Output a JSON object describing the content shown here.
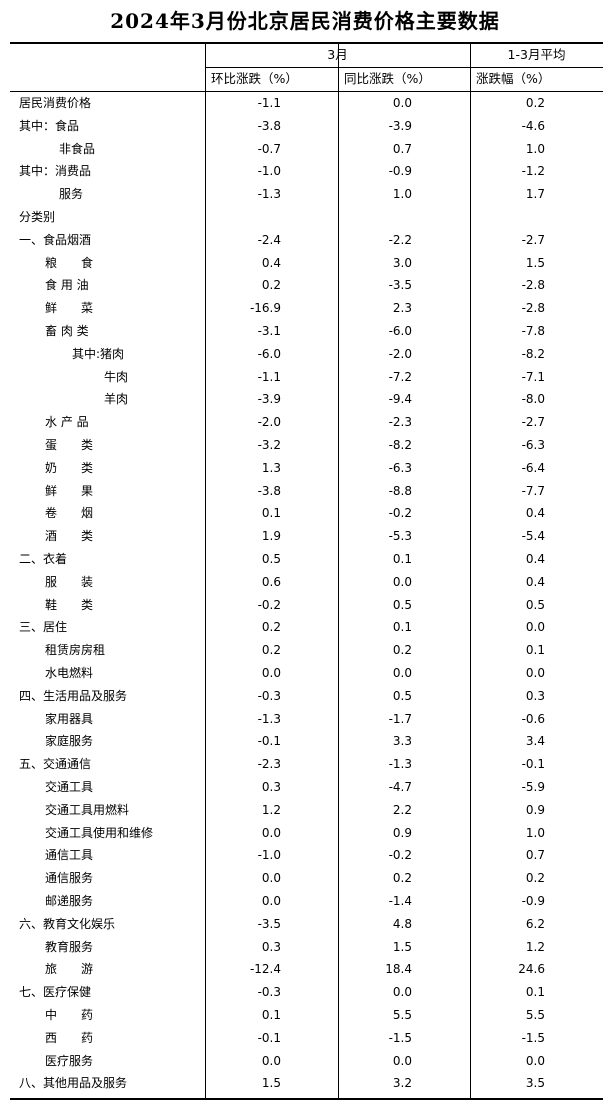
{
  "title": "2024年3月份北京居民消费价格主要数据",
  "header": {
    "group1": "3月",
    "group2": "1-3月平均",
    "col1": "环比涨跌（%）",
    "col2": "同比涨跌（%）",
    "col3": "涨跌幅（%）"
  },
  "rows": [
    {
      "label": "居民消费价格",
      "indent": 0,
      "values": [
        "-1.1",
        "0.0",
        "0.2"
      ]
    },
    {
      "label": "其中：食品",
      "indent": 0,
      "values": [
        "-3.8",
        "-3.9",
        "-4.6"
      ]
    },
    {
      "label": "非食品",
      "indent": 4,
      "values": [
        "-0.7",
        "0.7",
        "1.0"
      ]
    },
    {
      "label": "其中：消费品",
      "indent": 0,
      "values": [
        "-1.0",
        "-0.9",
        "-1.2"
      ]
    },
    {
      "label": "服务",
      "indent": 4,
      "values": [
        "-1.3",
        "1.0",
        "1.7"
      ]
    },
    {
      "label": "分类别",
      "indent": 0,
      "values": [
        "",
        "",
        ""
      ]
    },
    {
      "label": "一、食品烟酒",
      "indent": 0,
      "values": [
        "-2.4",
        "-2.2",
        "-2.7"
      ]
    },
    {
      "label": "粮　　食",
      "indent": 1,
      "values": [
        "0.4",
        "3.0",
        "1.5"
      ]
    },
    {
      "label": "食 用 油",
      "indent": 1,
      "values": [
        "0.2",
        "-3.5",
        "-2.8"
      ]
    },
    {
      "label": "鲜　　菜",
      "indent": 1,
      "values": [
        "-16.9",
        "2.3",
        "-2.8"
      ]
    },
    {
      "label": "畜 肉 类",
      "indent": 1,
      "values": [
        "-3.1",
        "-6.0",
        "-7.8"
      ]
    },
    {
      "label": "其中:猪肉",
      "indent": 2,
      "values": [
        "-6.0",
        "-2.0",
        "-8.2"
      ]
    },
    {
      "label": "牛肉",
      "indent": 3,
      "values": [
        "-1.1",
        "-7.2",
        "-7.1"
      ]
    },
    {
      "label": "羊肉",
      "indent": 3,
      "values": [
        "-3.9",
        "-9.4",
        "-8.0"
      ]
    },
    {
      "label": "水 产 品",
      "indent": 1,
      "values": [
        "-2.0",
        "-2.3",
        "-2.7"
      ]
    },
    {
      "label": "蛋　　类",
      "indent": 1,
      "values": [
        "-3.2",
        "-8.2",
        "-6.3"
      ]
    },
    {
      "label": "奶　　类",
      "indent": 1,
      "values": [
        "1.3",
        "-6.3",
        "-6.4"
      ]
    },
    {
      "label": "鲜　　果",
      "indent": 1,
      "values": [
        "-3.8",
        "-8.8",
        "-7.7"
      ]
    },
    {
      "label": "卷　　烟",
      "indent": 1,
      "values": [
        "0.1",
        "-0.2",
        "0.4"
      ]
    },
    {
      "label": "酒　　类",
      "indent": 1,
      "values": [
        "1.9",
        "-5.3",
        "-5.4"
      ]
    },
    {
      "label": "二、衣着",
      "indent": 0,
      "values": [
        "0.5",
        "0.1",
        "0.4"
      ]
    },
    {
      "label": "服　　装",
      "indent": 1,
      "values": [
        "0.6",
        "0.0",
        "0.4"
      ]
    },
    {
      "label": "鞋　　类",
      "indent": 1,
      "values": [
        "-0.2",
        "0.5",
        "0.5"
      ]
    },
    {
      "label": "三、居住",
      "indent": 0,
      "values": [
        "0.2",
        "0.1",
        "0.0"
      ]
    },
    {
      "label": "租赁房房租",
      "indent": 1,
      "values": [
        "0.2",
        "0.2",
        "0.1"
      ]
    },
    {
      "label": "水电燃料",
      "indent": 1,
      "values": [
        "0.0",
        "0.0",
        "0.0"
      ]
    },
    {
      "label": "四、生活用品及服务",
      "indent": 0,
      "values": [
        "-0.3",
        "0.5",
        "0.3"
      ]
    },
    {
      "label": "家用器具",
      "indent": 1,
      "values": [
        "-1.3",
        "-1.7",
        "-0.6"
      ]
    },
    {
      "label": "家庭服务",
      "indent": 1,
      "values": [
        "-0.1",
        "3.3",
        "3.4"
      ]
    },
    {
      "label": "五、交通通信",
      "indent": 0,
      "values": [
        "-2.3",
        "-1.3",
        "-0.1"
      ]
    },
    {
      "label": "交通工具",
      "indent": 1,
      "values": [
        "0.3",
        "-4.7",
        "-5.9"
      ]
    },
    {
      "label": "交通工具用燃料",
      "indent": 1,
      "values": [
        "1.2",
        "2.2",
        "0.9"
      ]
    },
    {
      "label": "交通工具使用和维修",
      "indent": 1,
      "values": [
        "0.0",
        "0.9",
        "1.0"
      ]
    },
    {
      "label": "通信工具",
      "indent": 1,
      "values": [
        "-1.0",
        "-0.2",
        "0.7"
      ]
    },
    {
      "label": "通信服务",
      "indent": 1,
      "values": [
        "0.0",
        "0.2",
        "0.2"
      ]
    },
    {
      "label": "邮递服务",
      "indent": 1,
      "values": [
        "0.0",
        "-1.4",
        "-0.9"
      ]
    },
    {
      "label": "六、教育文化娱乐",
      "indent": 0,
      "values": [
        "-3.5",
        "4.8",
        "6.2"
      ]
    },
    {
      "label": "教育服务",
      "indent": 1,
      "values": [
        "0.3",
        "1.5",
        "1.2"
      ]
    },
    {
      "label": "旅　　游",
      "indent": 1,
      "values": [
        "-12.4",
        "18.4",
        "24.6"
      ]
    },
    {
      "label": "七、医疗保健",
      "indent": 0,
      "values": [
        "-0.3",
        "0.0",
        "0.1"
      ]
    },
    {
      "label": "中　　药",
      "indent": 1,
      "values": [
        "0.1",
        "5.5",
        "5.5"
      ]
    },
    {
      "label": "西　　药",
      "indent": 1,
      "values": [
        "-0.1",
        "-1.5",
        "-1.5"
      ]
    },
    {
      "label": "医疗服务",
      "indent": 1,
      "values": [
        "0.0",
        "0.0",
        "0.0"
      ]
    },
    {
      "label": "八、其他用品及服务",
      "indent": 0,
      "values": [
        "1.5",
        "3.2",
        "3.5"
      ]
    }
  ]
}
